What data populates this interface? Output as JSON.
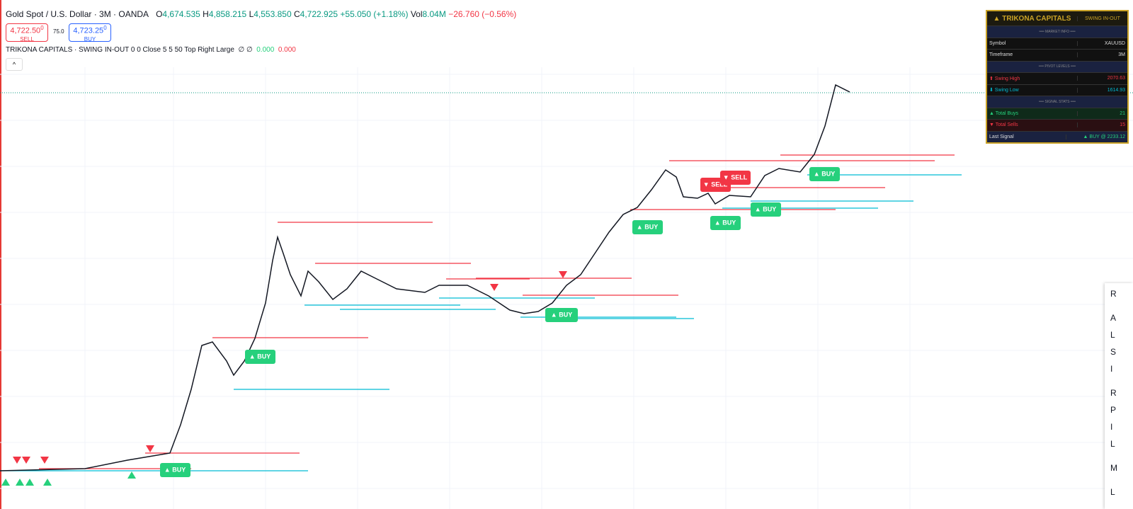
{
  "header": {
    "symbol": "Gold Spot / U.S. Dollar · 3M · OANDA",
    "o_label": "O",
    "o": "4,674.535",
    "h_label": "H",
    "h": "4,858.215",
    "l_label": "L",
    "l": "4,553.850",
    "c_label": "C",
    "c": "4,722.925",
    "change": "+55.050 (+1.18%)",
    "vol_label": "Vol",
    "vol": "8.04M",
    "vol_change": "−26.760 (−0.56%)"
  },
  "trade": {
    "sell_price": "4,722.50",
    "sell_sup": "0",
    "sell_label": "SELL",
    "spread": "75.0",
    "buy_price": "4,723.25",
    "buy_sup": "0",
    "buy_label": "BUY"
  },
  "indicator": {
    "name": "TRIKONA CAPITALS · SWING IN-OUT 0 0 Close 5 5 50 Top Right Large",
    "symbols": "∅ ∅",
    "value1": "0.000",
    "value2": "0.000"
  },
  "panel": {
    "title": "▲ TRIKONA CAPITALS",
    "subtitle": "SWING IN-OUT",
    "section1": "══ MARKET INFO ══",
    "symbol_label": "Symbol",
    "symbol": "XAUUSD",
    "timeframe_label": "Timeframe",
    "timeframe": "3M",
    "section2": "══ PIVOT LEVELS ══",
    "swing_high_label": "⬆ Swing High",
    "swing_high": "2070.63",
    "swing_low_label": "⬇ Swing Low",
    "swing_low": "1614.93",
    "section3": "══ SIGNAL STATS ══",
    "buys_label": "▲ Total Buys",
    "buys": "21",
    "sells_label": "▼ Total Sells",
    "sells": "15",
    "last_label": "Last Signal",
    "last": "▲ BUY @ 2233.12"
  },
  "signals": [
    "▲ BUY",
    "▲ BUY",
    "▲ BUY",
    "▲ BUY",
    "▲ BUY",
    "▲ BUY",
    "▲ BUY",
    "▼ SELL",
    "▼ SELL"
  ],
  "menu": {
    "items": [
      "R",
      "A",
      "L",
      "S",
      "I",
      "R",
      "P",
      "I",
      "L",
      "M",
      "L"
    ]
  }
}
